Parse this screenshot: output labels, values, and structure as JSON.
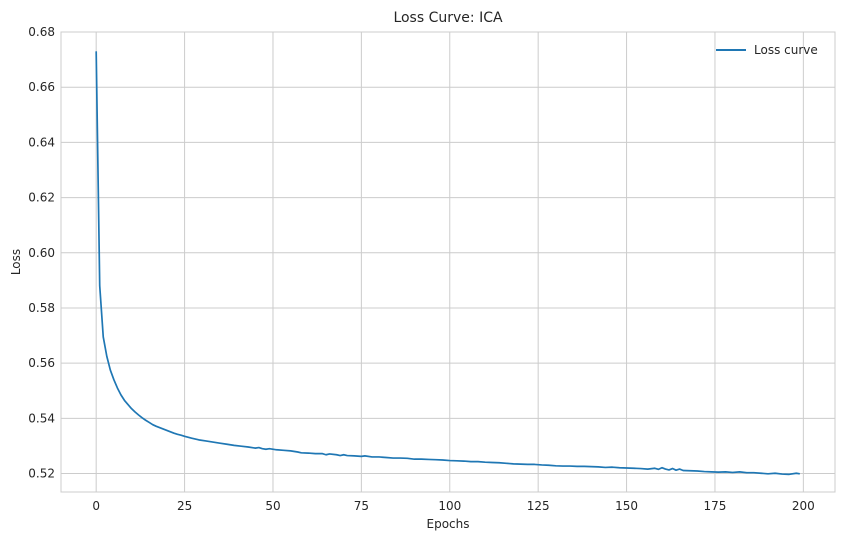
{
  "chart_data": {
    "type": "line",
    "title": "Loss Curve: ICA",
    "xlabel": "Epochs",
    "ylabel": "Loss",
    "xlim": [
      -9.95,
      208.95
    ],
    "ylim": [
      0.5133,
      0.68
    ],
    "xticks": [
      0,
      25,
      50,
      75,
      100,
      125,
      150,
      175,
      200
    ],
    "yticks": [
      0.52,
      0.54,
      0.56,
      0.58,
      0.6,
      0.62,
      0.64,
      0.66,
      0.68
    ],
    "xtick_labels": [
      "0",
      "25",
      "50",
      "75",
      "100",
      "125",
      "150",
      "175",
      "200"
    ],
    "ytick_labels": [
      "0.52",
      "0.54",
      "0.56",
      "0.58",
      "0.60",
      "0.62",
      "0.64",
      "0.66",
      "0.68"
    ],
    "grid": true,
    "legend_position": "top-right",
    "series": [
      {
        "name": "Loss curve",
        "color": "#1f77b4",
        "x": [
          0,
          1,
          2,
          3,
          4,
          5,
          6,
          7,
          8,
          9,
          10,
          11,
          12,
          13,
          14,
          15,
          16,
          17,
          18,
          19,
          20,
          21,
          22,
          23,
          24,
          25,
          27,
          29,
          31,
          33,
          35,
          37,
          39,
          41,
          43,
          45,
          46,
          47,
          48,
          49,
          51,
          53,
          55,
          57,
          58,
          60,
          62,
          64,
          65,
          66,
          68,
          69,
          70,
          71,
          73,
          75,
          76,
          78,
          80,
          82,
          84,
          86,
          88,
          90,
          92,
          94,
          96,
          98,
          100,
          102,
          104,
          106,
          108,
          110,
          112,
          114,
          116,
          118,
          120,
          122,
          124,
          126,
          128,
          130,
          132,
          134,
          136,
          138,
          140,
          142,
          144,
          146,
          148,
          150,
          152,
          154,
          156,
          158,
          159,
          160,
          161,
          162,
          163,
          164,
          165,
          166,
          168,
          170,
          172,
          174,
          176,
          178,
          180,
          182,
          184,
          186,
          188,
          190,
          192,
          194,
          196,
          198,
          199
        ],
        "values": [
          0.673,
          0.588,
          0.5695,
          0.5625,
          0.5575,
          0.554,
          0.551,
          0.5485,
          0.5465,
          0.545,
          0.5435,
          0.5423,
          0.5412,
          0.5402,
          0.5393,
          0.5385,
          0.5377,
          0.5371,
          0.5366,
          0.5361,
          0.5356,
          0.5351,
          0.5346,
          0.5342,
          0.5339,
          0.5335,
          0.5328,
          0.5322,
          0.5318,
          0.5314,
          0.531,
          0.5306,
          0.5302,
          0.5299,
          0.5296,
          0.5292,
          0.5294,
          0.529,
          0.5288,
          0.529,
          0.5286,
          0.5284,
          0.5282,
          0.5278,
          0.5275,
          0.5274,
          0.5272,
          0.5272,
          0.5268,
          0.5271,
          0.5268,
          0.5265,
          0.5268,
          0.5265,
          0.5264,
          0.5262,
          0.5264,
          0.526,
          0.526,
          0.5258,
          0.5256,
          0.5256,
          0.5255,
          0.5252,
          0.5252,
          0.5251,
          0.525,
          0.5249,
          0.5247,
          0.5246,
          0.5245,
          0.5243,
          0.5243,
          0.5241,
          0.524,
          0.5239,
          0.5237,
          0.5235,
          0.5234,
          0.5233,
          0.5233,
          0.5231,
          0.523,
          0.5228,
          0.5227,
          0.5227,
          0.5226,
          0.5226,
          0.5225,
          0.5224,
          0.5222,
          0.5223,
          0.5221,
          0.522,
          0.5219,
          0.5218,
          0.5216,
          0.5219,
          0.5215,
          0.5221,
          0.5216,
          0.5213,
          0.5218,
          0.5212,
          0.5216,
          0.5211,
          0.521,
          0.5209,
          0.5207,
          0.5206,
          0.5205,
          0.5206,
          0.5204,
          0.5206,
          0.5203,
          0.5203,
          0.5201,
          0.5199,
          0.5201,
          0.5198,
          0.5197,
          0.5201,
          0.5199
        ]
      }
    ]
  }
}
